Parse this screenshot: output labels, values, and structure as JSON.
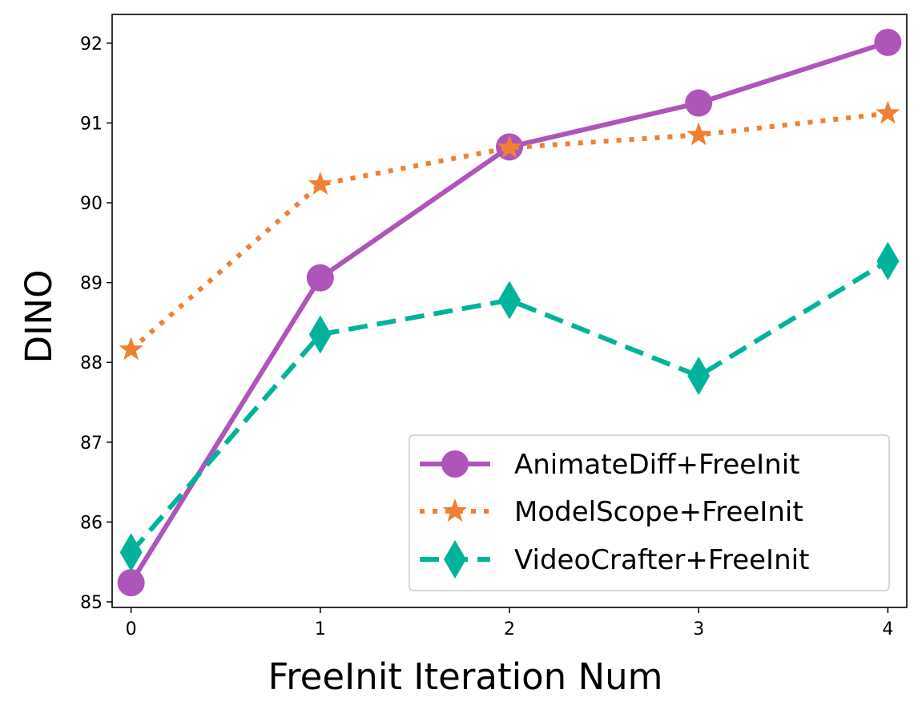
{
  "chart_data": {
    "type": "line",
    "title": "",
    "xlabel": "FreeInit Iteration Num",
    "ylabel": "DINO",
    "x": [
      0,
      1,
      2,
      3,
      4
    ],
    "xticks": [
      "0",
      "1",
      "2",
      "3",
      "4"
    ],
    "yticks": [
      "85",
      "86",
      "87",
      "88",
      "89",
      "90",
      "91",
      "92"
    ],
    "xlim": [
      -0.1,
      4.1
    ],
    "ylim": [
      84.93,
      92.36
    ],
    "grid": false,
    "legend_position": "lower-right",
    "series": [
      {
        "name": "AnimateDiff+FreeInit",
        "values": [
          85.24,
          89.06,
          90.7,
          91.25,
          92.01
        ],
        "color": "#ae55b9",
        "line_style": "solid",
        "marker": "circle"
      },
      {
        "name": "ModelScope+FreeInit",
        "values": [
          88.16,
          90.23,
          90.69,
          90.85,
          91.12
        ],
        "color": "#f08034",
        "line_style": "dotted",
        "marker": "star"
      },
      {
        "name": "VideoCrafter+FreeInit",
        "values": [
          85.62,
          88.35,
          88.78,
          87.83,
          89.27
        ],
        "color": "#00b39a",
        "line_style": "dashed",
        "marker": "thin-diamond"
      }
    ]
  }
}
